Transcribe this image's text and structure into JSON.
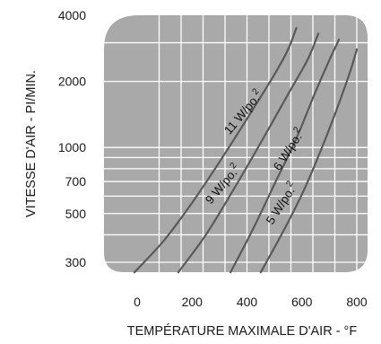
{
  "chart_data": {
    "type": "line",
    "title": "",
    "xlabel": "TEMPÉRATURE MAXIMALE D'AIR - °F",
    "ylabel": "VITESSE D'AIR - PI/MIN.",
    "x_ticks": [
      {
        "label": "0",
        "value": 0
      },
      {
        "label": "200",
        "value": 200
      },
      {
        "label": "400",
        "value": 400
      },
      {
        "label": "600",
        "value": 600
      },
      {
        "label": "800",
        "value": 800
      }
    ],
    "y_ticks": [
      {
        "label": "300",
        "value": 300
      },
      {
        "label": "500",
        "value": 500
      },
      {
        "label": "700",
        "value": 700
      },
      {
        "label": "1000",
        "value": 1000
      },
      {
        "label": "2000",
        "value": 2000
      },
      {
        "label": "4000",
        "value": 4000
      }
    ],
    "y_scale": "log",
    "xlim": [
      -60,
      910
    ],
    "ylim": [
      240,
      4000
    ],
    "grid": true,
    "colors": {
      "plot_background": "#a9a9a9",
      "grid": "#ffffff",
      "curve": "#5a5a5a"
    },
    "series": [
      {
        "name": "11 W/po.²",
        "x": [
          -10,
          100,
          200,
          300,
          400,
          500,
          550,
          580
        ],
        "y": [
          270,
          380,
          560,
          860,
          1350,
          2150,
          2800,
          3500
        ]
      },
      {
        "name": "9 W/po.²",
        "x": [
          150,
          250,
          350,
          450,
          550,
          620,
          660
        ],
        "y": [
          270,
          400,
          640,
          1050,
          1750,
          2500,
          3300
        ]
      },
      {
        "name": "6 W/po.²",
        "x": [
          340,
          420,
          500,
          580,
          650,
          700,
          735
        ],
        "y": [
          270,
          420,
          680,
          1100,
          1800,
          2500,
          3100
        ]
      },
      {
        "name": "5 W/po.²",
        "x": [
          450,
          530,
          610,
          680,
          740,
          780,
          800
        ],
        "y": [
          270,
          410,
          650,
          1050,
          1650,
          2300,
          2800
        ]
      }
    ],
    "curve_labels": [
      {
        "text": "11 W/po.",
        "sup": "2",
        "series": 0
      },
      {
        "text": "9 W/po.",
        "sup": "2",
        "series": 1
      },
      {
        "text": "6 W/po.",
        "sup": "2",
        "series": 2
      },
      {
        "text": "5 W/po.",
        "sup": "2",
        "series": 3
      }
    ]
  }
}
